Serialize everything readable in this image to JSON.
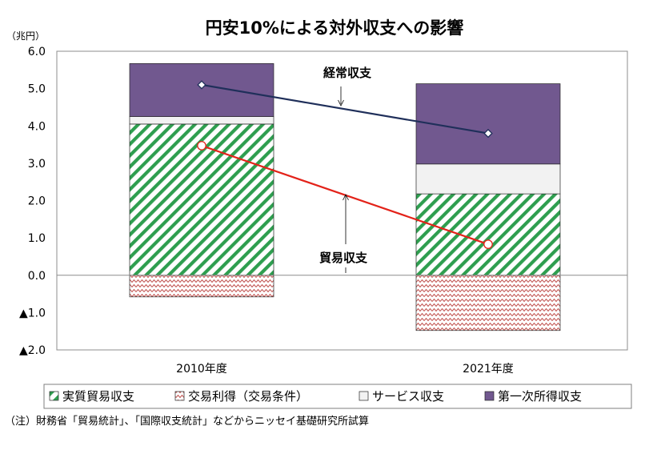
{
  "colors": {
    "real_trade": "#2E9E4F",
    "terms_of_trade": "#C0504D",
    "services": "#F2F2F2",
    "primary_income": "#71588F",
    "current_account_line": "#1F2F5A",
    "trade_line": "#E32219"
  },
  "chart_data": {
    "type": "bar",
    "stacked": true,
    "title": "円安10%による対外収支への影響",
    "ylabel": "（兆円）",
    "ylim": [
      -2.0,
      6.0
    ],
    "yticks": [
      {
        "value": 6.0,
        "label": "6.0"
      },
      {
        "value": 5.0,
        "label": "5.0"
      },
      {
        "value": 4.0,
        "label": "4.0"
      },
      {
        "value": 3.0,
        "label": "3.0"
      },
      {
        "value": 2.0,
        "label": "2.0"
      },
      {
        "value": 1.0,
        "label": "1.0"
      },
      {
        "value": 0.0,
        "label": "0.0"
      },
      {
        "value": -1.0,
        "label": "▲1.0"
      },
      {
        "value": -2.0,
        "label": "▲2.0"
      }
    ],
    "categories": [
      "2010年度",
      "2021年度"
    ],
    "series": [
      {
        "name": "実質貿易収支",
        "values": [
          4.05,
          2.18
        ],
        "pattern": "diagonal-stripes",
        "color": "#2E9E4F"
      },
      {
        "name": "交易利得（交易条件）",
        "values": [
          -0.58,
          -1.48
        ],
        "pattern": "zigzag",
        "color": "#C0504D"
      },
      {
        "name": "サービス収支",
        "values": [
          0.2,
          0.8
        ],
        "pattern": "solid",
        "color": "#F2F2F2"
      },
      {
        "name": "第一次所得収支",
        "values": [
          1.42,
          2.15
        ],
        "pattern": "solid",
        "color": "#71588F"
      }
    ],
    "lines": [
      {
        "name": "経常収支",
        "values": [
          5.1,
          3.8
        ],
        "color": "#1F2F5A",
        "marker": "diamond"
      },
      {
        "name": "貿易収支",
        "values": [
          3.47,
          0.83
        ],
        "color": "#E32219",
        "marker": "circle"
      }
    ],
    "annotations": [
      {
        "text": "経常収支",
        "target": "経常収支"
      },
      {
        "text": "貿易収支",
        "target": "貿易収支"
      }
    ],
    "grid": false,
    "legend_position": "bottom"
  },
  "note": "（注）財務省「貿易統計」、「国際収支統計」などからニッセイ基礎研究所試算"
}
